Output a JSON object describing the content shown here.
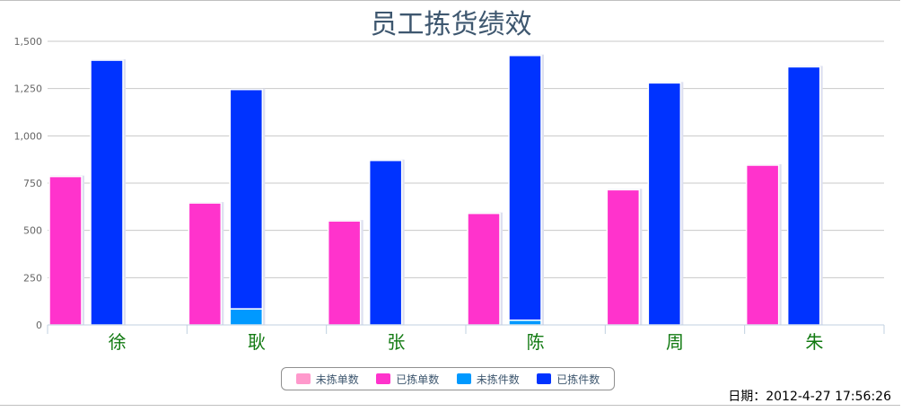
{
  "chart_data": {
    "type": "bar",
    "title": "员工拣货绩效",
    "categories": [
      "徐",
      "耿",
      "张",
      "陈",
      "周",
      "朱"
    ],
    "ylim": [
      0,
      1500
    ],
    "yticks": [
      "0",
      "250",
      "500",
      "750",
      "1,000",
      "1,250",
      "1,500"
    ],
    "grid": true,
    "legend_position": "bottom-center",
    "series": [
      {
        "name": "未拣单数",
        "color": "#ff99cc",
        "stack": "orders",
        "values": [
          0,
          0,
          0,
          0,
          0,
          0
        ]
      },
      {
        "name": "已拣单数",
        "color": "#ff33cc",
        "stack": "orders",
        "values": [
          785,
          645,
          550,
          590,
          715,
          845
        ]
      },
      {
        "name": "未拣件数",
        "color": "#0099ff",
        "stack": "items",
        "values": [
          0,
          85,
          0,
          25,
          0,
          0
        ]
      },
      {
        "name": "已拣件数",
        "color": "#0033ff",
        "stack": "items",
        "values": [
          1400,
          1160,
          870,
          1400,
          1280,
          1365
        ]
      }
    ]
  },
  "footer": {
    "timestamp": "日期：2012-4-27 17:56:26"
  }
}
